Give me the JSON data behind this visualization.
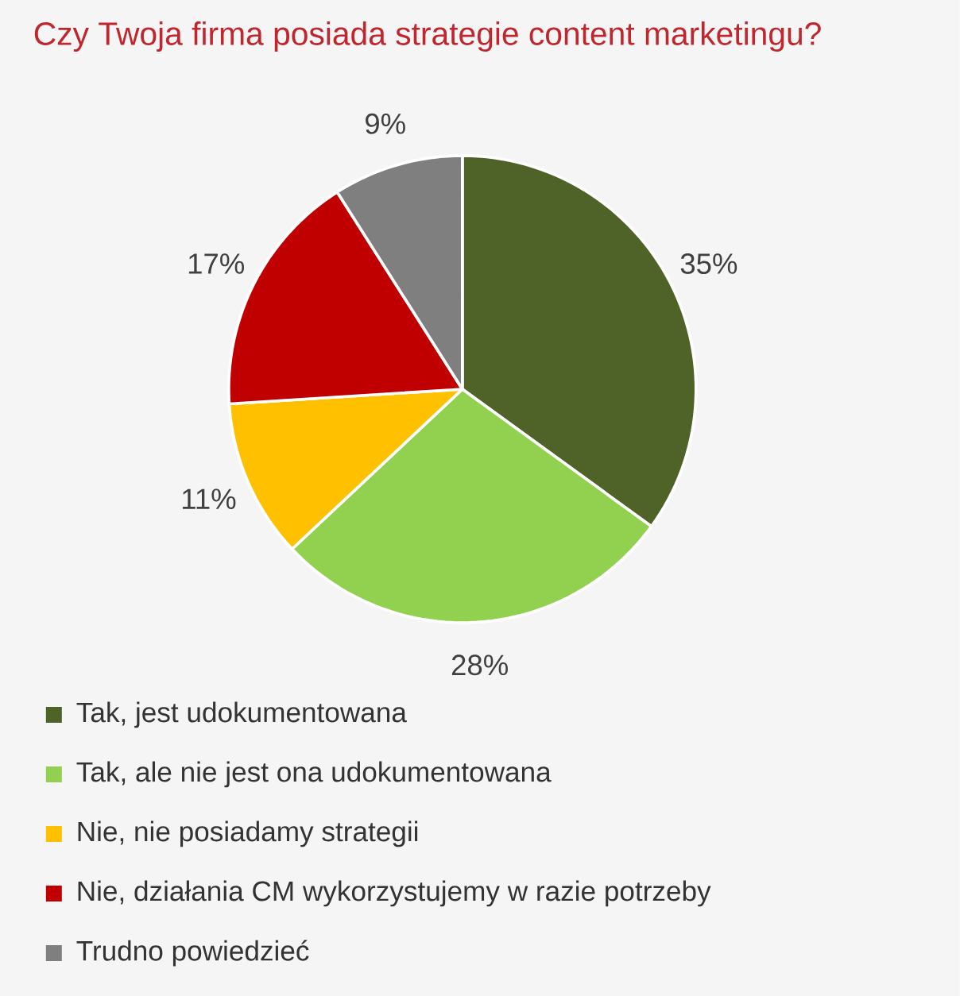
{
  "chart_data": {
    "type": "pie",
    "title": "Czy Twoja firma posiada strategie content marketingu?",
    "categories": [
      "Tak, jest udokumentowana",
      "Tak, ale nie jest ona udokumentowana",
      "Nie, nie posiadamy strategii",
      "Nie, działania CM wykorzystujemy w razie potrzeby",
      "Trudno powiedzieć"
    ],
    "values": [
      35,
      28,
      11,
      17,
      9
    ],
    "value_labels": [
      "35%",
      "28%",
      "11%",
      "17%",
      "9%"
    ],
    "colors": [
      "#4f6228",
      "#92d050",
      "#ffc000",
      "#c00000",
      "#7f7f7f"
    ],
    "legend": "bottom"
  }
}
